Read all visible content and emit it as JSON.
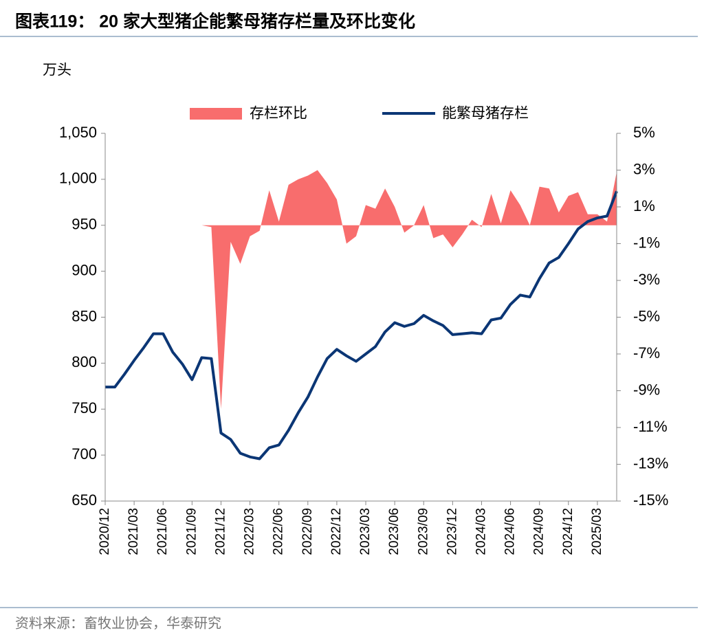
{
  "chart_data": {
    "type": "area+line",
    "title": "图表119： 20 家大型猪企能繁母猪存栏量及环比变化",
    "y_axis_label": "万头",
    "source": "资料来源：畜牧业协会，华泰研究",
    "categories": [
      "2020/12",
      null,
      null,
      "2021/03",
      null,
      null,
      "2021/06",
      null,
      null,
      "2021/09",
      null,
      null,
      "2021/12",
      null,
      null,
      "2022/03",
      null,
      null,
      "2022/06",
      null,
      null,
      "2022/09",
      null,
      null,
      "2022/12",
      null,
      null,
      "2023/03",
      null,
      null,
      "2023/06",
      null,
      null,
      "2023/09",
      null,
      null,
      "2023/12",
      null,
      null,
      "2024/03",
      null,
      null,
      "2024/06",
      null,
      null,
      "2024/09",
      null,
      null,
      "2024/12",
      null,
      null,
      "2025/03",
      null,
      null
    ],
    "ylim": [
      650,
      1050
    ],
    "yticks": [
      650,
      700,
      750,
      800,
      850,
      900,
      950,
      {
        "value": 1000,
        "label": "1,000"
      },
      {
        "value": 1050,
        "label": "1,050"
      }
    ],
    "y2lim": [
      -15,
      5
    ],
    "y2ticks": [
      {
        "value": 5,
        "label": "5%"
      },
      {
        "value": 3,
        "label": "3%"
      },
      {
        "value": 1,
        "label": "1%"
      },
      {
        "value": -1,
        "label": "-1%"
      },
      {
        "value": -3,
        "label": "-3%"
      },
      {
        "value": -5,
        "label": "-5%"
      },
      {
        "value": -7,
        "label": "-7%"
      },
      {
        "value": -9,
        "label": "-9%"
      },
      {
        "value": -11,
        "label": "-11%"
      },
      {
        "value": -13,
        "label": "-13%"
      },
      {
        "value": -15,
        "label": "-15%"
      }
    ],
    "legend": "top",
    "series": [
      {
        "name": "存栏环比",
        "type": "area",
        "axis": "y2",
        "color": "#f86d6d",
        "values": [
          null,
          null,
          null,
          null,
          null,
          null,
          null,
          null,
          null,
          null,
          0,
          -0.1,
          -10.0,
          -0.9,
          -2.1,
          -0.6,
          -0.3,
          1.9,
          0.2,
          2.2,
          2.5,
          2.7,
          3.0,
          2.3,
          1.4,
          -1.0,
          -0.6,
          1.1,
          0.9,
          2.0,
          1.0,
          -0.4,
          0,
          1.1,
          -0.7,
          -0.5,
          -1.2,
          -0.5,
          0.3,
          -0.1,
          1.7,
          0.1,
          1.9,
          1.1,
          0,
          2.1,
          2.0,
          0.7,
          1.6,
          1.8,
          0.6,
          0.6,
          0.2,
          2.9
        ]
      },
      {
        "name": "能繁母猪存栏",
        "type": "line",
        "color": "#0b3675",
        "values": [
          774,
          774,
          788,
          803,
          817,
          832,
          832,
          812,
          799,
          782,
          806,
          805,
          724,
          717,
          702,
          698,
          696,
          708,
          711,
          727,
          746,
          763,
          785,
          805,
          815,
          808,
          802,
          810,
          818,
          834,
          844,
          840,
          843,
          852,
          846,
          841,
          831,
          832,
          833,
          832,
          847,
          849,
          864,
          874,
          872,
          892,
          909,
          915,
          930,
          946,
          954,
          958,
          960,
          987
        ]
      }
    ]
  }
}
